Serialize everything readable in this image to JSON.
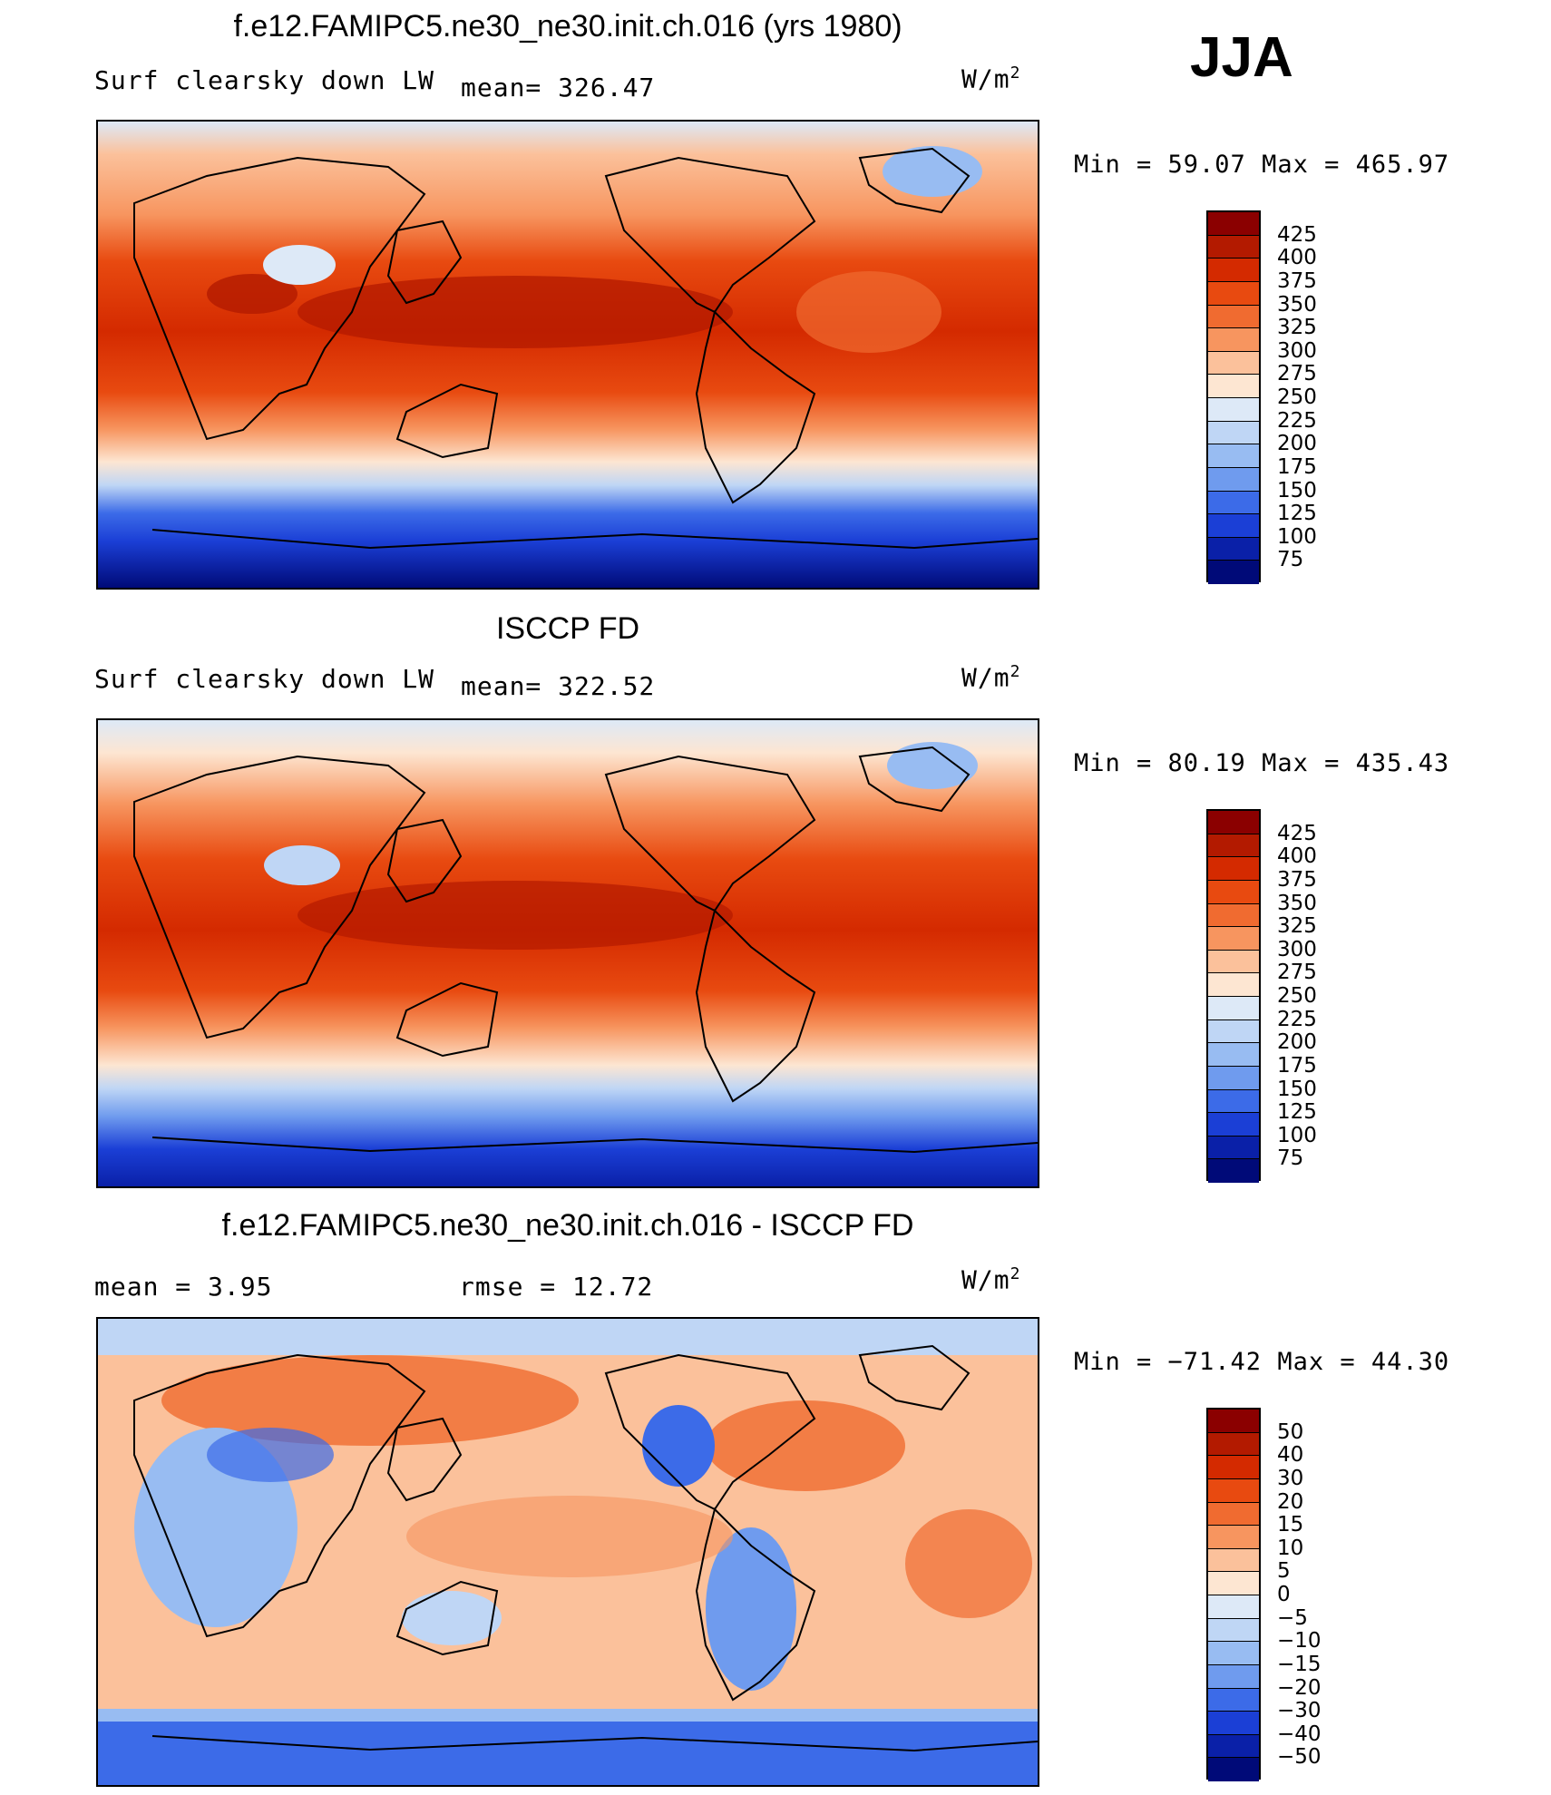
{
  "season": "JJA",
  "panels": [
    {
      "title": "f.e12.FAMIPC5.ne30_ne30.init.ch.016 (yrs 1980)",
      "left_label": "Surf clearsky down LW",
      "stat_label": "mean= 326.47",
      "units": "W/m",
      "units_sup": "2",
      "minmax": "Min =   59.07 Max = 465.97",
      "levels": [
        "425",
        "400",
        "375",
        "350",
        "325",
        "300",
        "275",
        "250",
        "225",
        "200",
        "175",
        "150",
        "125",
        "100",
        "75"
      ],
      "colors": [
        "#8b0000",
        "#b31a00",
        "#d42a00",
        "#e84a10",
        "#f06b30",
        "#f7955f",
        "#fbc19b",
        "#fde6d2",
        "#dde9f7",
        "#bfd6f5",
        "#98bcf2",
        "#6f9bee",
        "#3c6be8",
        "#1b3fd6",
        "#0a20a8",
        "#000a78"
      ]
    },
    {
      "title": "ISCCP FD",
      "left_label": "Surf clearsky down LW",
      "stat_label": "mean= 322.52",
      "units": "W/m",
      "units_sup": "2",
      "minmax": "Min =   80.19 Max = 435.43",
      "levels": [
        "425",
        "400",
        "375",
        "350",
        "325",
        "300",
        "275",
        "250",
        "225",
        "200",
        "175",
        "150",
        "125",
        "100",
        "75"
      ],
      "colors": [
        "#8b0000",
        "#b31a00",
        "#d42a00",
        "#e84a10",
        "#f06b30",
        "#f7955f",
        "#fbc19b",
        "#fde6d2",
        "#dde9f7",
        "#bfd6f5",
        "#98bcf2",
        "#6f9bee",
        "#3c6be8",
        "#1b3fd6",
        "#0a20a8",
        "#000a78"
      ]
    },
    {
      "title": "f.e12.FAMIPC5.ne30_ne30.init.ch.016 - ISCCP FD",
      "left_label": "mean =    3.95",
      "stat_label": "rmse =    12.72",
      "units": "W/m",
      "units_sup": "2",
      "minmax": "Min = −71.42 Max =   44.30",
      "levels": [
        "50",
        "40",
        "30",
        "20",
        "15",
        "10",
        "5",
        "0",
        "−5",
        "−10",
        "−15",
        "−20",
        "−30",
        "−40",
        "−50"
      ],
      "colors": [
        "#8b0000",
        "#b31a00",
        "#d42a00",
        "#e84a10",
        "#f06b30",
        "#f7955f",
        "#fbc19b",
        "#fde6d2",
        "#dde9f7",
        "#bfd6f5",
        "#98bcf2",
        "#6f9bee",
        "#3c6be8",
        "#1b3fd6",
        "#0a20a8",
        "#000a78"
      ]
    }
  ]
}
